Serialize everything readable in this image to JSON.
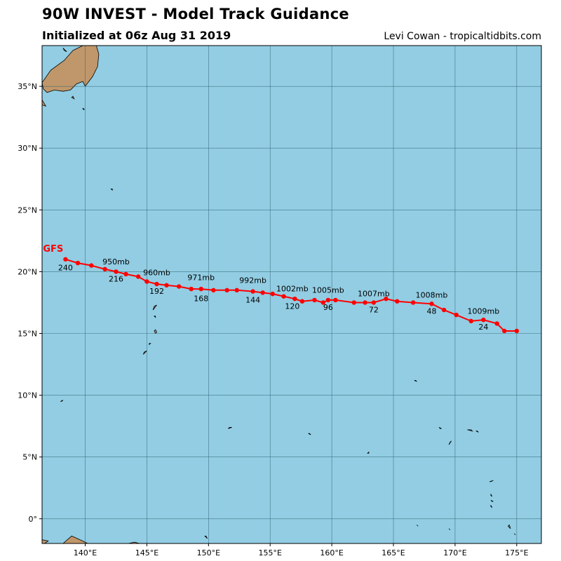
{
  "header": {
    "title": "90W INVEST - Model Track Guidance",
    "subtitle": "Initialized at 06z Aug 31 2019",
    "credit": "Levi Cowan - tropicaltidbits.com"
  },
  "colors": {
    "ocean": "#92cde3",
    "land": "#c0976a",
    "track": "#ff0000",
    "grid": "#2f5f6f"
  },
  "chart_data": {
    "type": "map-track",
    "map_extent": {
      "lon": [
        136.5,
        177.0
      ],
      "lat": [
        -2.0,
        38.3
      ]
    },
    "grid": true,
    "x_ticks": [
      {
        "value": 140,
        "label": "140°E"
      },
      {
        "value": 145,
        "label": "145°E"
      },
      {
        "value": 150,
        "label": "150°E"
      },
      {
        "value": 155,
        "label": "155°E"
      },
      {
        "value": 160,
        "label": "160°E"
      },
      {
        "value": 165,
        "label": "165°E"
      },
      {
        "value": 170,
        "label": "170°E"
      },
      {
        "value": 175,
        "label": "175°E"
      }
    ],
    "y_ticks": [
      {
        "value": 0,
        "label": "0°"
      },
      {
        "value": 5,
        "label": "5°N"
      },
      {
        "value": 10,
        "label": "10°N"
      },
      {
        "value": 15,
        "label": "15°N"
      },
      {
        "value": 20,
        "label": "20°N"
      },
      {
        "value": 25,
        "label": "25°N"
      },
      {
        "value": 30,
        "label": "30°N"
      },
      {
        "value": 35,
        "label": "35°N"
      }
    ],
    "model": {
      "name": "GFS",
      "lon": 137.4,
      "lat": 21.6
    },
    "track": [
      {
        "lon": 175.0,
        "lat": 15.2
      },
      {
        "lon": 174.0,
        "lat": 15.2
      },
      {
        "lon": 173.4,
        "lat": 15.8
      },
      {
        "lon": 172.3,
        "lat": 16.1
      },
      {
        "lon": 171.3,
        "lat": 16.0
      },
      {
        "lon": 170.1,
        "lat": 16.5
      },
      {
        "lon": 169.1,
        "lat": 16.9
      },
      {
        "lon": 168.1,
        "lat": 17.4
      },
      {
        "lon": 166.6,
        "lat": 17.5
      },
      {
        "lon": 165.3,
        "lat": 17.6
      },
      {
        "lon": 164.4,
        "lat": 17.8
      },
      {
        "lon": 163.4,
        "lat": 17.5
      },
      {
        "lon": 162.7,
        "lat": 17.5
      },
      {
        "lon": 161.8,
        "lat": 17.5
      },
      {
        "lon": 160.3,
        "lat": 17.7
      },
      {
        "lon": 159.7,
        "lat": 17.7
      },
      {
        "lon": 159.3,
        "lat": 17.5
      },
      {
        "lon": 158.6,
        "lat": 17.7
      },
      {
        "lon": 157.6,
        "lat": 17.6
      },
      {
        "lon": 157.0,
        "lat": 17.8
      },
      {
        "lon": 156.1,
        "lat": 18.0
      },
      {
        "lon": 155.2,
        "lat": 18.2
      },
      {
        "lon": 154.4,
        "lat": 18.3
      },
      {
        "lon": 153.6,
        "lat": 18.4
      },
      {
        "lon": 152.3,
        "lat": 18.5
      },
      {
        "lon": 151.5,
        "lat": 18.5
      },
      {
        "lon": 150.4,
        "lat": 18.5
      },
      {
        "lon": 149.4,
        "lat": 18.6
      },
      {
        "lon": 148.6,
        "lat": 18.6
      },
      {
        "lon": 147.6,
        "lat": 18.8
      },
      {
        "lon": 146.6,
        "lat": 18.9
      },
      {
        "lon": 145.8,
        "lat": 19.0
      },
      {
        "lon": 145.0,
        "lat": 19.2
      },
      {
        "lon": 144.3,
        "lat": 19.6
      },
      {
        "lon": 143.3,
        "lat": 19.8
      },
      {
        "lon": 142.5,
        "lat": 20.0
      },
      {
        "lon": 141.6,
        "lat": 20.2
      },
      {
        "lon": 140.5,
        "lat": 20.5
      },
      {
        "lon": 139.4,
        "lat": 20.7
      },
      {
        "lon": 138.4,
        "lat": 21.0
      }
    ],
    "hour_labels": [
      {
        "label": "24",
        "lon": 172.3,
        "lat": 15.3
      },
      {
        "label": "48",
        "lon": 168.1,
        "lat": 16.6
      },
      {
        "label": "72",
        "lon": 163.4,
        "lat": 16.7
      },
      {
        "label": "96",
        "lon": 159.7,
        "lat": 16.9
      },
      {
        "label": "120",
        "lon": 156.8,
        "lat": 17.0
      },
      {
        "label": "144",
        "lon": 153.6,
        "lat": 17.5
      },
      {
        "label": "168",
        "lon": 149.4,
        "lat": 17.6
      },
      {
        "label": "192",
        "lon": 145.8,
        "lat": 18.2
      },
      {
        "label": "216",
        "lon": 142.5,
        "lat": 19.2
      },
      {
        "label": "240",
        "lon": 138.4,
        "lat": 20.1
      }
    ],
    "pressure_labels": [
      {
        "label": "1009mb",
        "lon": 172.3,
        "lat": 16.6
      },
      {
        "label": "1008mb",
        "lon": 168.1,
        "lat": 17.9
      },
      {
        "label": "1007mb",
        "lon": 163.4,
        "lat": 18.0
      },
      {
        "label": "1005mb",
        "lon": 159.7,
        "lat": 18.3
      },
      {
        "label": "1002mb",
        "lon": 156.8,
        "lat": 18.4
      },
      {
        "label": "992mb",
        "lon": 153.6,
        "lat": 19.1
      },
      {
        "label": "971mb",
        "lon": 149.4,
        "lat": 19.3
      },
      {
        "label": "960mb",
        "lon": 145.8,
        "lat": 19.7
      },
      {
        "label": "950mb",
        "lon": 142.5,
        "lat": 20.6
      }
    ],
    "land_polygons": [
      [
        [
          136.5,
          35.3
        ],
        [
          137.2,
          36.3
        ],
        [
          138.3,
          37.1
        ],
        [
          139.0,
          37.9
        ],
        [
          139.8,
          38.3
        ],
        [
          140.9,
          38.3
        ],
        [
          141.1,
          37.6
        ],
        [
          141.0,
          36.6
        ],
        [
          140.6,
          35.8
        ],
        [
          140.0,
          35.0
        ],
        [
          139.8,
          35.4
        ],
        [
          139.3,
          35.2
        ],
        [
          138.8,
          34.7
        ],
        [
          138.2,
          34.6
        ],
        [
          137.5,
          34.7
        ],
        [
          136.9,
          34.5
        ],
        [
          136.6,
          34.8
        ]
      ],
      [
        [
          136.5,
          33.9
        ],
        [
          136.8,
          33.4
        ],
        [
          136.5,
          33.5
        ]
      ],
      [
        [
          138.2,
          38.1
        ],
        [
          138.5,
          37.8
        ],
        [
          138.3,
          37.9
        ]
      ],
      [
        [
          138.9,
          34.1
        ],
        [
          139.1,
          34.0
        ],
        [
          139.0,
          34.2
        ]
      ],
      [
        [
          139.8,
          33.2
        ],
        [
          139.9,
          33.1
        ],
        [
          139.9,
          33.2
        ]
      ],
      [
        [
          142.1,
          26.7
        ],
        [
          142.2,
          26.6
        ],
        [
          142.2,
          26.7
        ]
      ],
      [
        [
          145.5,
          16.9
        ],
        [
          145.8,
          17.3
        ],
        [
          145.6,
          17.2
        ]
      ],
      [
        [
          145.7,
          15.3
        ],
        [
          145.8,
          15.1
        ],
        [
          145.7,
          15.0
        ],
        [
          145.6,
          15.2
        ]
      ],
      [
        [
          145.6,
          16.4
        ],
        [
          145.7,
          16.3
        ],
        [
          145.7,
          16.4
        ]
      ],
      [
        [
          144.7,
          13.3
        ],
        [
          145.0,
          13.6
        ],
        [
          144.8,
          13.5
        ]
      ],
      [
        [
          145.2,
          14.1
        ],
        [
          145.3,
          14.2
        ],
        [
          145.2,
          14.2
        ]
      ],
      [
        [
          138.0,
          9.5
        ],
        [
          138.2,
          9.6
        ],
        [
          138.1,
          9.5
        ]
      ],
      [
        [
          151.6,
          7.3
        ],
        [
          151.9,
          7.4
        ],
        [
          151.7,
          7.4
        ]
      ],
      [
        [
          158.1,
          6.9
        ],
        [
          158.3,
          6.8
        ],
        [
          158.2,
          6.9
        ]
      ],
      [
        [
          162.9,
          5.3
        ],
        [
          163.0,
          5.3
        ],
        [
          163.0,
          5.4
        ]
      ],
      [
        [
          166.7,
          11.2
        ],
        [
          166.9,
          11.1
        ],
        [
          166.8,
          11.2
        ]
      ],
      [
        [
          168.7,
          7.4
        ],
        [
          168.9,
          7.3
        ],
        [
          168.8,
          7.3
        ]
      ],
      [
        [
          169.5,
          6.0
        ],
        [
          169.7,
          6.3
        ],
        [
          169.6,
          6.2
        ]
      ],
      [
        [
          171.0,
          7.2
        ],
        [
          171.4,
          7.1
        ],
        [
          171.3,
          7.2
        ]
      ],
      [
        [
          171.7,
          7.1
        ],
        [
          171.9,
          7.0
        ],
        [
          171.8,
          7.1
        ]
      ],
      [
        [
          172.8,
          3.0
        ],
        [
          173.1,
          3.1
        ],
        [
          172.9,
          3.0
        ]
      ],
      [
        [
          172.9,
          2.0
        ],
        [
          173.0,
          1.8
        ],
        [
          172.9,
          1.9
        ]
      ],
      [
        [
          172.9,
          1.5
        ],
        [
          173.1,
          1.4
        ],
        [
          173.0,
          1.4
        ]
      ],
      [
        [
          172.9,
          1.0
        ],
        [
          173.0,
          0.9
        ],
        [
          172.9,
          1.1
        ]
      ],
      [
        [
          174.3,
          -0.6
        ],
        [
          174.5,
          -0.8
        ],
        [
          174.4,
          -0.5
        ]
      ],
      [
        [
          174.8,
          -1.2
        ],
        [
          174.9,
          -1.3
        ],
        [
          174.8,
          -1.2
        ]
      ],
      [
        [
          166.9,
          -0.5
        ],
        [
          167.0,
          -0.6
        ],
        [
          166.9,
          -0.5
        ]
      ],
      [
        [
          169.5,
          -0.8
        ],
        [
          169.6,
          -0.9
        ],
        [
          169.5,
          -0.8
        ]
      ],
      [
        [
          149.7,
          -1.4
        ],
        [
          149.9,
          -1.6
        ],
        [
          149.8,
          -1.4
        ]
      ],
      [
        [
          138.2,
          -2.0
        ],
        [
          138.9,
          -1.4
        ],
        [
          139.8,
          -1.8
        ],
        [
          140.2,
          -2.0
        ]
      ],
      [
        [
          136.5,
          -1.7
        ],
        [
          137.0,
          -1.8
        ],
        [
          136.7,
          -2.0
        ],
        [
          136.5,
          -2.0
        ]
      ],
      [
        [
          143.5,
          -2.0
        ],
        [
          144.0,
          -1.9
        ],
        [
          144.4,
          -2.0
        ]
      ]
    ]
  }
}
